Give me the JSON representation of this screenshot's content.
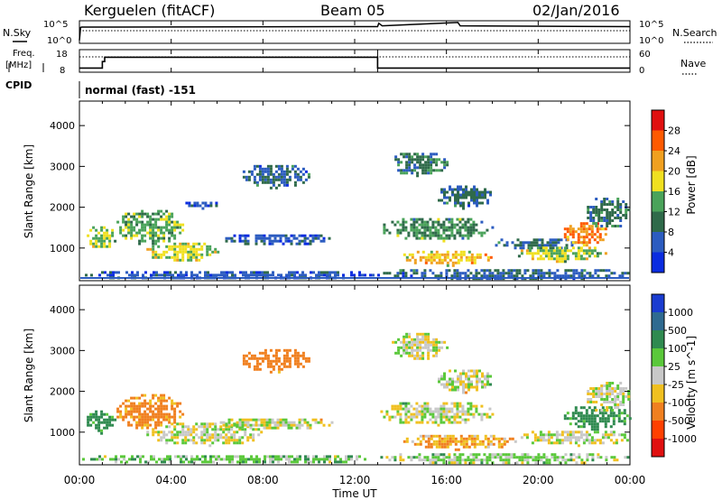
{
  "header": {
    "station": "Kerguelen (fitACF)",
    "beam": "Beam 05",
    "date": "02/Jan/2016"
  },
  "panel_labels": {
    "nsky": "N.Sky",
    "nsearch": "N.Search",
    "freq_line1": "Freq.",
    "freq_line2": "[MHz]",
    "nave": "Nave",
    "cpid": "CPID",
    "cpid_text": "normal (fast) -151"
  },
  "time_axis": {
    "label": "Time UT",
    "ticks": [
      "00:00",
      "04:00",
      "08:00",
      "12:00",
      "16:00",
      "20:00",
      "00:00"
    ]
  },
  "chart_data": [
    {
      "type": "line",
      "name": "noise",
      "left_ticks": [
        "10^5",
        "10^0"
      ],
      "right_ticks": [
        "10^5",
        "10^0"
      ],
      "x_hours": [
        0,
        0.05,
        0.1,
        13.0,
        13.05,
        13.2,
        16.5,
        16.6,
        24
      ],
      "nsky_log": [
        0.5,
        3.6,
        3.7,
        3.8,
        4.6,
        4.0,
        4.8,
        4.0,
        3.8
      ]
    },
    {
      "type": "line",
      "name": "frequency",
      "left_ticks": [
        "18",
        "8"
      ],
      "right_ticks": [
        "60",
        "0"
      ],
      "freq_x_hours": [
        0,
        1.0,
        1.0,
        1.1,
        1.1,
        13.0,
        13.0,
        24
      ],
      "freq_mhz": [
        9.5,
        9.5,
        12.5,
        12.5,
        14.5,
        14.5,
        9.5,
        9.5
      ],
      "nave_level": 40
    },
    {
      "type": "heatmap",
      "name": "power",
      "ylabel": "Slant Range [km]",
      "yticks": [
        1000,
        2000,
        3000,
        4000
      ],
      "ylim": [
        200,
        4600
      ],
      "xlim": [
        0,
        24
      ],
      "colorbar": {
        "label": "Power [dB]",
        "ticks": [
          "4",
          "8",
          "12",
          "16",
          "20",
          "24",
          "28"
        ],
        "colors": [
          "#0a2ce0",
          "#2c5cc0",
          "#2f6a4a",
          "#4aa35a",
          "#f0e020",
          "#f0a020",
          "#ff5a00",
          "#e01010"
        ]
      },
      "regions": [
        {
          "t": [
            0.2,
            1.6
          ],
          "r": [
            1000,
            1600
          ],
          "v": 16
        },
        {
          "t": [
            1.5,
            4.5
          ],
          "r": [
            1100,
            2000
          ],
          "v": 14
        },
        {
          "t": [
            2.8,
            6.0
          ],
          "r": [
            700,
            1200
          ],
          "v": 17
        },
        {
          "t": [
            4.5,
            6.0
          ],
          "r": [
            2000,
            2200
          ],
          "v": 6
        },
        {
          "t": [
            6.0,
            11.0
          ],
          "r": [
            1100,
            1400
          ],
          "v": 6
        },
        {
          "t": [
            7.0,
            10.0
          ],
          "r": [
            2500,
            3100
          ],
          "v": 8
        },
        {
          "t": [
            13.0,
            18.0
          ],
          "r": [
            1200,
            1800
          ],
          "v": 12
        },
        {
          "t": [
            13.5,
            16.0
          ],
          "r": [
            2800,
            3400
          ],
          "v": 10
        },
        {
          "t": [
            14.0,
            18.0
          ],
          "r": [
            600,
            1000
          ],
          "v": 20
        },
        {
          "t": [
            15.5,
            18.0
          ],
          "r": [
            2000,
            2600
          ],
          "v": 8
        },
        {
          "t": [
            18.0,
            22.0
          ],
          "r": [
            1000,
            1300
          ],
          "v": 8
        },
        {
          "t": [
            19.0,
            23.0
          ],
          "r": [
            700,
            1100
          ],
          "v": 16
        },
        {
          "t": [
            21.0,
            23.0
          ],
          "r": [
            1100,
            1700
          ],
          "v": 24
        },
        {
          "t": [
            22.0,
            24.0
          ],
          "r": [
            1500,
            2300
          ],
          "v": 10
        },
        {
          "t": [
            0.0,
            13.0
          ],
          "r": [
            250,
            500
          ],
          "v": 6
        },
        {
          "t": [
            13.0,
            24.0
          ],
          "r": [
            250,
            550
          ],
          "v": 8
        }
      ]
    },
    {
      "type": "heatmap",
      "name": "velocity",
      "ylabel": "Slant Range [km]",
      "yticks": [
        1000,
        2000,
        3000,
        4000
      ],
      "ylim": [
        200,
        4600
      ],
      "xlim": [
        0,
        24
      ],
      "colorbar": {
        "label": "Velocity [m s^-1]",
        "ticks": [
          "1000",
          "500",
          "100",
          "25",
          "-25",
          "-100",
          "-500",
          "-1000"
        ],
        "colors": [
          "#1a3cd0",
          "#2f6a90",
          "#2f8a50",
          "#5ac83a",
          "#c8c8c8",
          "#f0c020",
          "#f08020",
          "#ff4000",
          "#e01010"
        ]
      },
      "regions": [
        {
          "t": [
            0.2,
            1.6
          ],
          "r": [
            1000,
            1600
          ],
          "v": 150
        },
        {
          "t": [
            1.5,
            4.5
          ],
          "r": [
            1100,
            2000
          ],
          "v": -150
        },
        {
          "t": [
            2.8,
            8.0
          ],
          "r": [
            700,
            1300
          ],
          "v": 0
        },
        {
          "t": [
            6.0,
            11.0
          ],
          "r": [
            1100,
            1400
          ],
          "v": 0
        },
        {
          "t": [
            7.0,
            10.0
          ],
          "r": [
            2500,
            3100
          ],
          "v": -200
        },
        {
          "t": [
            13.0,
            18.0
          ],
          "r": [
            1200,
            1800
          ],
          "v": 0
        },
        {
          "t": [
            13.5,
            16.0
          ],
          "r": [
            2800,
            3500
          ],
          "v": 0
        },
        {
          "t": [
            14.0,
            19.0
          ],
          "r": [
            600,
            1000
          ],
          "v": -80
        },
        {
          "t": [
            15.5,
            18.0
          ],
          "r": [
            2000,
            2600
          ],
          "v": 0
        },
        {
          "t": [
            19.0,
            24.0
          ],
          "r": [
            700,
            1100
          ],
          "v": 0
        },
        {
          "t": [
            21.0,
            24.0
          ],
          "r": [
            1100,
            1700
          ],
          "v": 150
        },
        {
          "t": [
            22.0,
            24.0
          ],
          "r": [
            1500,
            2300
          ],
          "v": 0
        },
        {
          "t": [
            0.0,
            13.0
          ],
          "r": [
            250,
            500
          ],
          "v": 60
        },
        {
          "t": [
            13.0,
            24.0
          ],
          "r": [
            250,
            550
          ],
          "v": 40
        }
      ]
    }
  ]
}
